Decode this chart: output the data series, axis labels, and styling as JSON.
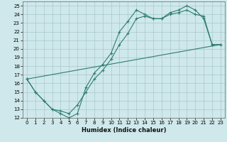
{
  "xlabel": "Humidex (Indice chaleur)",
  "bg_color": "#cfe8eb",
  "line_color": "#2e7d6e",
  "grid_color": "#a8c8cc",
  "xlim": [
    -0.5,
    23.5
  ],
  "ylim": [
    12,
    25.5
  ],
  "yticks": [
    12,
    13,
    14,
    15,
    16,
    17,
    18,
    19,
    20,
    21,
    22,
    23,
    24,
    25
  ],
  "xticks": [
    0,
    1,
    2,
    3,
    4,
    5,
    6,
    7,
    8,
    9,
    10,
    11,
    12,
    13,
    14,
    15,
    16,
    17,
    18,
    19,
    20,
    21,
    22,
    23
  ],
  "curve1_x": [
    0,
    1,
    2,
    3,
    4,
    5,
    6,
    7,
    8,
    9,
    10,
    11,
    12,
    13,
    14,
    15,
    16,
    17,
    18,
    19,
    20,
    21,
    22,
    23
  ],
  "curve1_y": [
    16.5,
    15.0,
    14.0,
    13.0,
    12.5,
    12.0,
    12.5,
    15.5,
    17.2,
    18.2,
    19.5,
    22.0,
    23.2,
    24.5,
    24.0,
    23.5,
    23.5,
    24.2,
    24.5,
    25.0,
    24.5,
    23.5,
    20.5,
    20.5
  ],
  "curve2_x": [
    0,
    1,
    2,
    3,
    4,
    5,
    6,
    7,
    8,
    9,
    10,
    11,
    12,
    13,
    14,
    15,
    16,
    17,
    18,
    19,
    20,
    21,
    22,
    23
  ],
  "curve2_y": [
    16.5,
    15.0,
    14.0,
    13.0,
    12.8,
    12.5,
    13.5,
    15.0,
    16.5,
    17.5,
    18.8,
    20.5,
    21.8,
    23.5,
    23.8,
    23.5,
    23.5,
    24.0,
    24.2,
    24.5,
    24.0,
    23.8,
    20.5,
    20.5
  ],
  "line3_x": [
    0,
    23
  ],
  "line3_y": [
    16.5,
    20.5
  ]
}
